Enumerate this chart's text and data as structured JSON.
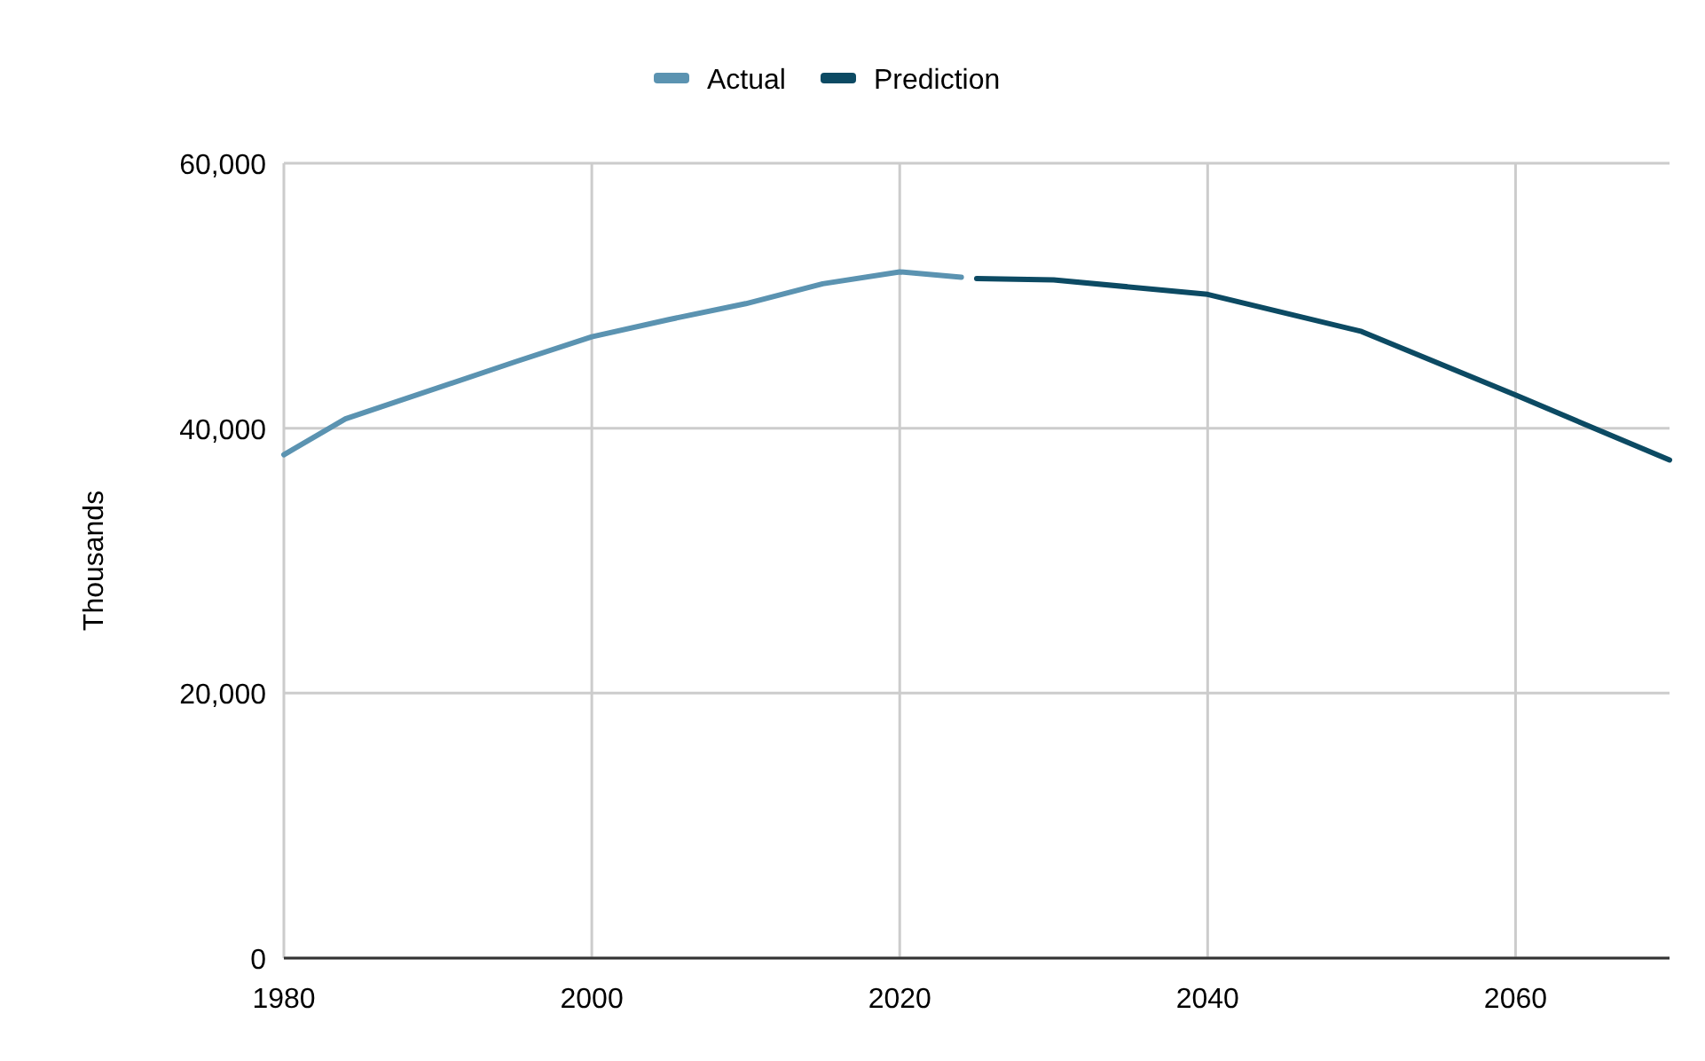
{
  "chart_data": {
    "type": "line",
    "ylabel": "Thousands",
    "xlim": [
      1980,
      2070
    ],
    "xticks": [
      1980,
      2000,
      2020,
      2040,
      2060
    ],
    "ylim": [
      0,
      60000
    ],
    "yticks": [
      {
        "value": 0,
        "label": "0"
      },
      {
        "value": 20000,
        "label": "20,000"
      },
      {
        "value": 40000,
        "label": "40,000"
      },
      {
        "value": 60000,
        "label": "60,000"
      }
    ],
    "grid": true,
    "legend": "top",
    "series": [
      {
        "name": "Actual",
        "color": "#5b93b1",
        "x": [
          1980,
          1984,
          1995,
          2000,
          2005,
          2010,
          2015,
          2020,
          2024
        ],
        "values": [
          38000,
          40700,
          45000,
          46900,
          48200,
          49400,
          50900,
          51800,
          51400
        ]
      },
      {
        "name": "Prediction",
        "color": "#0c4a63",
        "x": [
          2025,
          2030,
          2040,
          2050,
          2060,
          2070
        ],
        "values": [
          51300,
          51200,
          50100,
          47300,
          42500,
          37600
        ]
      }
    ]
  }
}
